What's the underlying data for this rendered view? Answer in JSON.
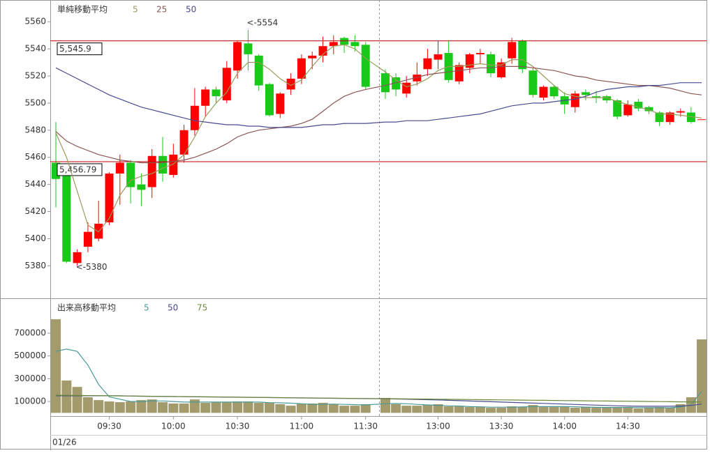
{
  "chart_data": [
    {
      "type": "candlestick",
      "legend_title": "単純移動平均",
      "ylim": [
        5356,
        5575
      ],
      "yticks": [
        5380,
        5400,
        5420,
        5440,
        5460,
        5480,
        5500,
        5520,
        5540,
        5560
      ],
      "up_color": "#ff0000",
      "down_color": "#19c819",
      "open": [
        5456,
        5447,
        5382,
        5394,
        5400,
        5412,
        5448,
        5456,
        5440,
        5438,
        5461,
        5447,
        5462,
        5480,
        5498,
        5510,
        5502,
        5524,
        5544,
        5535,
        5514,
        5492,
        5510,
        5518,
        5533,
        5535,
        5542,
        5548,
        5545,
        5543,
        5522,
        5519,
        5507,
        5516,
        5525,
        5532,
        5537,
        5516,
        5526,
        5536,
        5536,
        5519,
        5533,
        5546,
        5524,
        5504,
        5512,
        5505,
        5497,
        5508,
        5505,
        5505,
        5502,
        5491,
        5501,
        5497,
        5493,
        5486,
        5493,
        5493,
        5488
      ],
      "high": [
        5486,
        5449,
        5392,
        5412,
        5428,
        5449,
        5462,
        5458,
        5448,
        5466,
        5475,
        5470,
        5484,
        5511,
        5512,
        5512,
        5531,
        5546,
        5554,
        5536,
        5515,
        5508,
        5522,
        5536,
        5538,
        5549,
        5550,
        5549,
        5550,
        5545,
        5525,
        5522,
        5520,
        5530,
        5540,
        5546,
        5546,
        5530,
        5537,
        5540,
        5538,
        5533,
        5548,
        5547,
        5526,
        5513,
        5513,
        5508,
        5509,
        5510,
        5509,
        5506,
        5503,
        5502,
        5503,
        5498,
        5494,
        5494,
        5496,
        5497,
        5488
      ],
      "low": [
        5423,
        5382,
        5380,
        5390,
        5398,
        5410,
        5425,
        5426,
        5424,
        5430,
        5442,
        5445,
        5456,
        5476,
        5490,
        5500,
        5500,
        5518,
        5524,
        5509,
        5490,
        5489,
        5506,
        5514,
        5525,
        5530,
        5536,
        5537,
        5538,
        5510,
        5503,
        5505,
        5504,
        5513,
        5520,
        5525,
        5515,
        5514,
        5522,
        5529,
        5519,
        5518,
        5529,
        5522,
        5504,
        5502,
        5503,
        5492,
        5493,
        5502,
        5500,
        5500,
        5488,
        5490,
        5494,
        5492,
        5483,
        5484,
        5490,
        5485,
        5488
      ],
      "close": [
        5444,
        5383,
        5390,
        5405,
        5411,
        5448,
        5456,
        5438,
        5436,
        5461,
        5448,
        5462,
        5480,
        5498,
        5510,
        5505,
        5526,
        5545,
        5536,
        5513,
        5491,
        5507,
        5518,
        5533,
        5535,
        5542,
        5545,
        5543,
        5542,
        5512,
        5508,
        5510,
        5515,
        5521,
        5533,
        5536,
        5517,
        5528,
        5536,
        5537,
        5522,
        5530,
        5545,
        5525,
        5506,
        5512,
        5505,
        5499,
        5507,
        5506,
        5504,
        5502,
        5490,
        5499,
        5496,
        5494,
        5486,
        5493,
        5494,
        5486,
        5488
      ],
      "series": [
        {
          "name": "5",
          "color": "#9a9a5a",
          "values": [
            5478,
            5460,
            5435,
            5410,
            5405,
            5415,
            5432,
            5443,
            5446,
            5448,
            5452,
            5455,
            5462,
            5475,
            5490,
            5500,
            5508,
            5522,
            5530,
            5530,
            5525,
            5518,
            5513,
            5517,
            5527,
            5536,
            5542,
            5543,
            5540,
            5533,
            5523,
            5517,
            5512,
            5514,
            5518,
            5524,
            5527,
            5527,
            5528,
            5529,
            5528,
            5528,
            5532,
            5532,
            5527,
            5520,
            5513,
            5507,
            5505,
            5504,
            5504,
            5504,
            5501,
            5499,
            5497,
            5495,
            5492,
            5492,
            5491,
            5490,
            5489
          ]
        },
        {
          "name": "25",
          "color": "#8b5555",
          "values": [
            5479,
            5472,
            5468,
            5465,
            5462,
            5460,
            5458,
            5457,
            5456,
            5456,
            5456,
            5457,
            5458,
            5460,
            5463,
            5466,
            5470,
            5475,
            5478,
            5480,
            5481,
            5482,
            5483,
            5485,
            5488,
            5494,
            5500,
            5505,
            5508,
            5510,
            5513,
            5515,
            5517,
            5519,
            5521,
            5522,
            5523,
            5524,
            5525,
            5526,
            5526,
            5527,
            5527,
            5527,
            5526,
            5525,
            5524,
            5522,
            5520,
            5519,
            5517,
            5516,
            5515,
            5514,
            5513,
            5513,
            5512,
            5511,
            5509,
            5507,
            5506
          ]
        },
        {
          "name": "50",
          "color": "#4a4a90",
          "values": [
            5526,
            5522,
            5518,
            5514,
            5510,
            5506,
            5503,
            5500,
            5497,
            5495,
            5493,
            5491,
            5489,
            5487,
            5486,
            5485,
            5484,
            5484,
            5483,
            5483,
            5482,
            5482,
            5482,
            5482,
            5483,
            5484,
            5484,
            5485,
            5485,
            5485,
            5486,
            5486,
            5487,
            5487,
            5487,
            5488,
            5489,
            5490,
            5491,
            5492,
            5494,
            5496,
            5498,
            5499,
            5500,
            5500,
            5501,
            5502,
            5503,
            5505,
            5508,
            5510,
            5511,
            5512,
            5512,
            5513,
            5513,
            5514,
            5515,
            5515,
            5515
          ]
        }
      ],
      "hlines": [
        {
          "value": 5545.9,
          "label": "5,545.9",
          "color": "#c00000"
        },
        {
          "value": 5456.79,
          "label": "5,456.79",
          "color": "#c00000"
        }
      ],
      "annotations": [
        {
          "text": "<-5554",
          "value": 5554,
          "color": "#e02020"
        },
        {
          "text": "<-5380",
          "value": 5380,
          "color": "#19a019"
        }
      ]
    },
    {
      "type": "bar",
      "legend_title": "出来高移動平均",
      "color": "#a39b6c",
      "ylim": [
        -22000,
        994000
      ],
      "yticks": [
        100000,
        300000,
        500000,
        700000
      ],
      "categories": [
        null,
        null,
        null,
        null,
        null,
        "09:30",
        null,
        null,
        null,
        null,
        null,
        "10:00",
        null,
        null,
        null,
        null,
        null,
        "10:30",
        null,
        null,
        null,
        null,
        null,
        "11:00",
        null,
        null,
        null,
        null,
        null,
        "11:30",
        null,
        null,
        null,
        null,
        null,
        "13:00",
        null,
        null,
        null,
        null,
        null,
        "13:30",
        null,
        null,
        null,
        null,
        null,
        "14:00",
        null,
        null,
        null,
        null,
        null,
        "14:30",
        null,
        null,
        null,
        null,
        null,
        null,
        null
      ],
      "x_label": "01/26",
      "values": [
        822000,
        284000,
        228000,
        137000,
        112000,
        100000,
        94000,
        100000,
        112000,
        118000,
        94000,
        82000,
        82000,
        118000,
        88000,
        94000,
        94000,
        100000,
        100000,
        88000,
        88000,
        76000,
        63000,
        82000,
        82000,
        88000,
        76000,
        63000,
        63000,
        76000,
        131000,
        76000,
        63000,
        63000,
        69000,
        76000,
        57000,
        57000,
        51000,
        51000,
        45000,
        45000,
        57000,
        51000,
        69000,
        51000,
        51000,
        57000,
        45000,
        51000,
        45000,
        51000,
        51000,
        45000,
        39000,
        45000,
        51000,
        45000,
        76000,
        137000,
        645000
      ],
      "series": [
        {
          "name": "5",
          "color": "#4a9a9a",
          "values": [
            540000,
            560000,
            540000,
            420000,
            250000,
            140000,
            120000,
            100000,
            100000,
            105000,
            105000,
            100000,
            95000,
            95000,
            95000,
            95000,
            95000,
            95000,
            95000,
            95000,
            90000,
            88000,
            85000,
            80000,
            75000,
            75000,
            77000,
            75000,
            72000,
            70000,
            80000,
            82000,
            80000,
            75000,
            70000,
            66000,
            62000,
            60000,
            55000,
            53000,
            50000,
            50000,
            50000,
            52000,
            55000,
            55000,
            55000,
            56000,
            54000,
            51000,
            49000,
            48000,
            48000,
            48000,
            47000,
            46000,
            46000,
            45000,
            52000,
            70000,
            190000
          ]
        },
        {
          "name": "50",
          "color": "#4a4a90",
          "values": [
            150000,
            150000,
            150000,
            150000,
            150000,
            150000,
            150000,
            148000,
            146000,
            145000,
            144000,
            143000,
            142000,
            141000,
            140000,
            139000,
            138000,
            137000,
            136000,
            135000,
            134000,
            133000,
            132000,
            131000,
            130000,
            129000,
            128000,
            127000,
            126000,
            125000,
            124000,
            122000,
            120000,
            118000,
            116000,
            113000,
            110000,
            107000,
            104000,
            101000,
            98000,
            95000,
            92000,
            89000,
            86000,
            83000,
            80000,
            77000,
            74000,
            71000,
            68000,
            65000,
            62000,
            60000,
            58000,
            58000,
            58000,
            58000,
            60000,
            65000,
            78000
          ]
        },
        {
          "name": "75",
          "color": "#6a8a3a",
          "values": [
            155000,
            154000,
            153000,
            152000,
            151000,
            150000,
            149000,
            148000,
            147000,
            146000,
            145000,
            144000,
            143000,
            142000,
            141000,
            140000,
            139000,
            138000,
            137000,
            136000,
            135000,
            134000,
            133000,
            132000,
            131000,
            130000,
            129000,
            128000,
            127000,
            126000,
            125000,
            124000,
            123000,
            122000,
            121000,
            120000,
            119000,
            118000,
            117000,
            116000,
            115000,
            114000,
            113000,
            112000,
            111000,
            110000,
            109000,
            108000,
            107000,
            106000,
            105000,
            104000,
            103000,
            102000,
            101000,
            100000,
            99000,
            98000,
            97000,
            96000,
            95000
          ]
        }
      ]
    }
  ]
}
